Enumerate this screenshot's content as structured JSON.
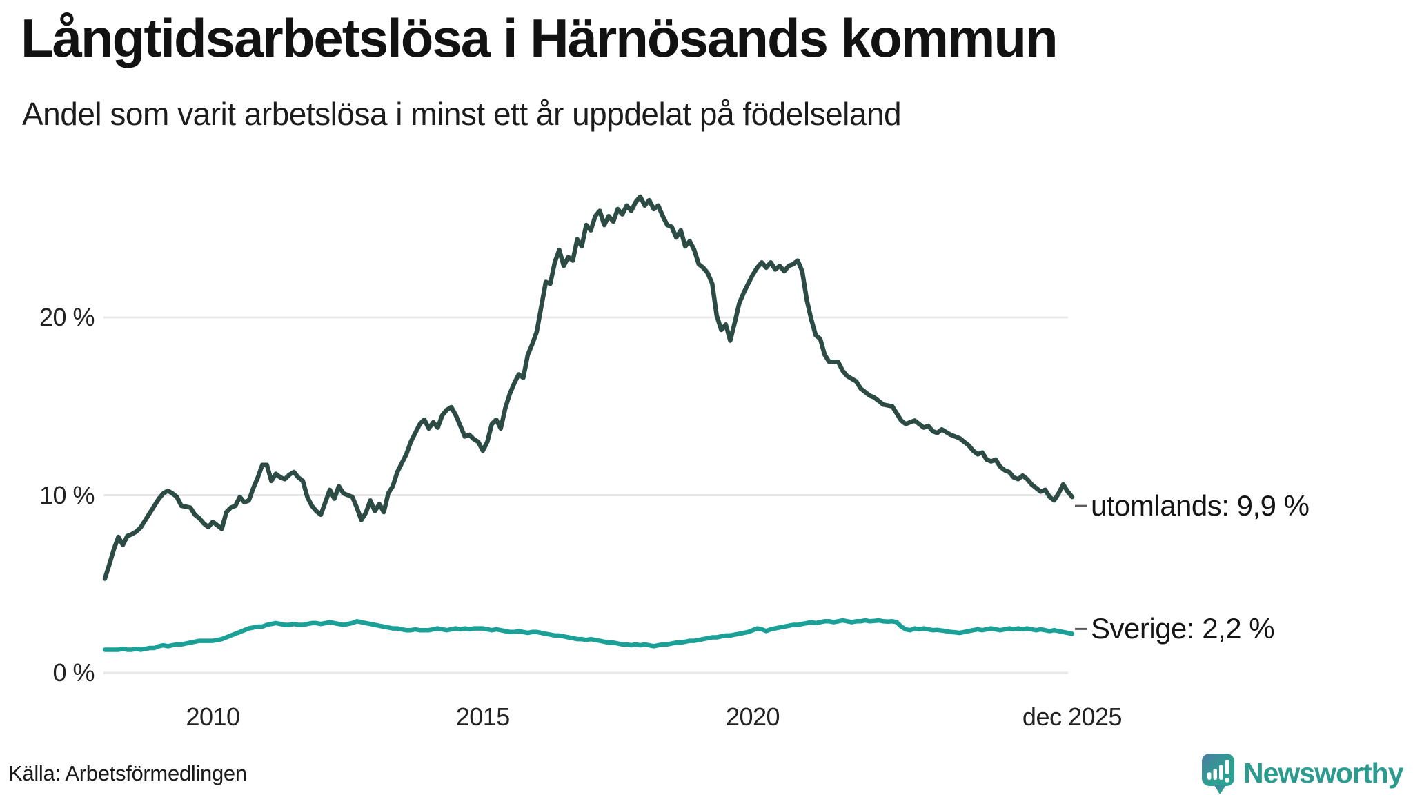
{
  "header": {
    "title": "Långtidsarbetslösa i Härnösands kommun",
    "subtitle": "Andel som varit arbetslösa i minst ett år uppdelat på födelseland"
  },
  "chart_data": {
    "type": "line",
    "title": "Långtidsarbetslösa i Härnösands kommun",
    "subtitle": "Andel som varit arbetslösa i minst ett år uppdelat på födelseland",
    "unit": "%",
    "frequency": "monthly",
    "x_start": "jan 2008",
    "x_end": "dec 2025",
    "ylim": [
      0,
      28
    ],
    "grid": "horizontal",
    "legend_position": "end-of-line-labels",
    "y_ticks": [
      {
        "value": 0,
        "label": "0 %"
      },
      {
        "value": 10,
        "label": "10 %"
      },
      {
        "value": 20,
        "label": "20 %"
      }
    ],
    "x_ticks": [
      {
        "month_index": 24,
        "label": "2010"
      },
      {
        "month_index": 84,
        "label": "2015"
      },
      {
        "month_index": 144,
        "label": "2020"
      },
      {
        "month_index": 215,
        "label": "dec 2025"
      }
    ],
    "series": [
      {
        "name": "utomlands",
        "end_label": "utomlands: 9,9 %",
        "last_value_text": "9,9 %",
        "color": "#2d4b45",
        "values": [
          5.3,
          6.1,
          6.95,
          7.65,
          7.2,
          7.7,
          7.8,
          7.95,
          8.2,
          8.6,
          9.0,
          9.4,
          9.8,
          10.1,
          10.25,
          10.1,
          9.9,
          9.4,
          9.35,
          9.3,
          8.9,
          8.7,
          8.4,
          8.2,
          8.5,
          8.3,
          8.1,
          9.05,
          9.3,
          9.4,
          9.9,
          9.6,
          9.7,
          10.4,
          11.0,
          11.7,
          11.7,
          10.8,
          11.2,
          11.0,
          10.9,
          11.15,
          11.3,
          11.0,
          10.8,
          9.9,
          9.4,
          9.1,
          8.9,
          9.6,
          10.3,
          9.8,
          10.5,
          10.1,
          10.0,
          9.9,
          9.3,
          8.6,
          9.0,
          9.7,
          9.1,
          9.5,
          9.05,
          10.1,
          10.5,
          11.3,
          11.8,
          12.3,
          13.0,
          13.5,
          14.0,
          14.25,
          13.75,
          14.1,
          13.8,
          14.5,
          14.8,
          14.95,
          14.5,
          13.9,
          13.3,
          13.4,
          13.15,
          13.0,
          12.5,
          13.0,
          14.0,
          14.25,
          13.75,
          14.9,
          15.7,
          16.3,
          16.8,
          16.6,
          17.9,
          18.5,
          19.2,
          20.6,
          22.0,
          21.9,
          23.1,
          23.8,
          22.9,
          23.4,
          23.2,
          24.4,
          24.0,
          25.2,
          24.9,
          25.7,
          26.0,
          25.2,
          25.7,
          25.4,
          26.1,
          25.8,
          26.3,
          26.0,
          26.5,
          26.8,
          26.3,
          26.6,
          26.1,
          26.3,
          25.7,
          25.2,
          25.1,
          24.5,
          24.9,
          24.0,
          24.3,
          23.8,
          23.0,
          22.8,
          22.5,
          21.9,
          20.1,
          19.3,
          19.6,
          18.7,
          19.7,
          20.8,
          21.4,
          21.9,
          22.4,
          22.8,
          23.1,
          22.8,
          23.1,
          22.7,
          22.9,
          22.6,
          22.9,
          23.0,
          23.2,
          22.6,
          21.0,
          19.9,
          19.0,
          18.8,
          17.9,
          17.5,
          17.5,
          17.5,
          17.0,
          16.7,
          16.55,
          16.4,
          16.0,
          15.8,
          15.6,
          15.5,
          15.3,
          15.1,
          15.05,
          15.0,
          14.6,
          14.2,
          14.0,
          14.1,
          14.2,
          14.0,
          13.8,
          13.9,
          13.6,
          13.5,
          13.7,
          13.55,
          13.4,
          13.3,
          13.2,
          13.0,
          12.8,
          12.5,
          12.3,
          12.4,
          12.0,
          11.9,
          12.0,
          11.6,
          11.4,
          11.3,
          11.0,
          10.9,
          11.1,
          10.9,
          10.6,
          10.4,
          10.2,
          10.3,
          9.9,
          9.7,
          10.1,
          10.6,
          10.2,
          9.9
        ]
      },
      {
        "name": "Sverige",
        "end_label": "Sverige: 2,2 %",
        "last_value_text": "2,2 %",
        "color": "#1aa096",
        "values": [
          1.3,
          1.3,
          1.3,
          1.3,
          1.35,
          1.3,
          1.3,
          1.35,
          1.3,
          1.35,
          1.4,
          1.4,
          1.5,
          1.55,
          1.5,
          1.55,
          1.6,
          1.6,
          1.65,
          1.7,
          1.75,
          1.8,
          1.8,
          1.8,
          1.8,
          1.85,
          1.9,
          2.0,
          2.1,
          2.2,
          2.3,
          2.4,
          2.5,
          2.55,
          2.6,
          2.6,
          2.7,
          2.75,
          2.8,
          2.75,
          2.7,
          2.7,
          2.75,
          2.7,
          2.7,
          2.75,
          2.8,
          2.8,
          2.75,
          2.8,
          2.85,
          2.8,
          2.75,
          2.7,
          2.75,
          2.8,
          2.9,
          2.85,
          2.8,
          2.75,
          2.7,
          2.65,
          2.6,
          2.55,
          2.5,
          2.5,
          2.45,
          2.4,
          2.4,
          2.45,
          2.4,
          2.4,
          2.4,
          2.45,
          2.5,
          2.45,
          2.4,
          2.45,
          2.5,
          2.45,
          2.5,
          2.45,
          2.5,
          2.5,
          2.5,
          2.45,
          2.4,
          2.45,
          2.4,
          2.35,
          2.3,
          2.3,
          2.35,
          2.3,
          2.25,
          2.3,
          2.3,
          2.25,
          2.2,
          2.15,
          2.1,
          2.1,
          2.05,
          2.0,
          1.95,
          1.9,
          1.9,
          1.85,
          1.9,
          1.85,
          1.8,
          1.75,
          1.7,
          1.7,
          1.65,
          1.6,
          1.6,
          1.55,
          1.6,
          1.55,
          1.6,
          1.55,
          1.5,
          1.55,
          1.6,
          1.6,
          1.65,
          1.7,
          1.7,
          1.75,
          1.8,
          1.8,
          1.85,
          1.9,
          1.95,
          2.0,
          2.0,
          2.05,
          2.1,
          2.1,
          2.15,
          2.2,
          2.25,
          2.3,
          2.4,
          2.5,
          2.45,
          2.35,
          2.45,
          2.5,
          2.55,
          2.6,
          2.65,
          2.7,
          2.7,
          2.75,
          2.8,
          2.85,
          2.8,
          2.85,
          2.9,
          2.9,
          2.85,
          2.9,
          2.95,
          2.9,
          2.85,
          2.9,
          2.9,
          2.95,
          2.9,
          2.92,
          2.95,
          2.9,
          2.88,
          2.9,
          2.85,
          2.6,
          2.45,
          2.4,
          2.5,
          2.45,
          2.5,
          2.45,
          2.4,
          2.42,
          2.38,
          2.35,
          2.3,
          2.28,
          2.25,
          2.3,
          2.35,
          2.4,
          2.45,
          2.4,
          2.45,
          2.5,
          2.45,
          2.4,
          2.45,
          2.5,
          2.45,
          2.5,
          2.45,
          2.5,
          2.45,
          2.4,
          2.45,
          2.4,
          2.35,
          2.4,
          2.35,
          2.3,
          2.25,
          2.2
        ]
      }
    ]
  },
  "footer": {
    "source": "Källa: Arbetsförmedlingen",
    "brand": "Newsworthy"
  },
  "colors": {
    "series_abroad": "#2d4b45",
    "series_sweden": "#1aa096",
    "gridline": "#e8e8eb",
    "connector": "#5a5a5a",
    "text": "#151515",
    "brand_teal": "#2b9b8f",
    "brand_gradient_start": "#4e7ba3",
    "brand_gradient_end": "#28a391",
    "background": "#ffffff"
  }
}
